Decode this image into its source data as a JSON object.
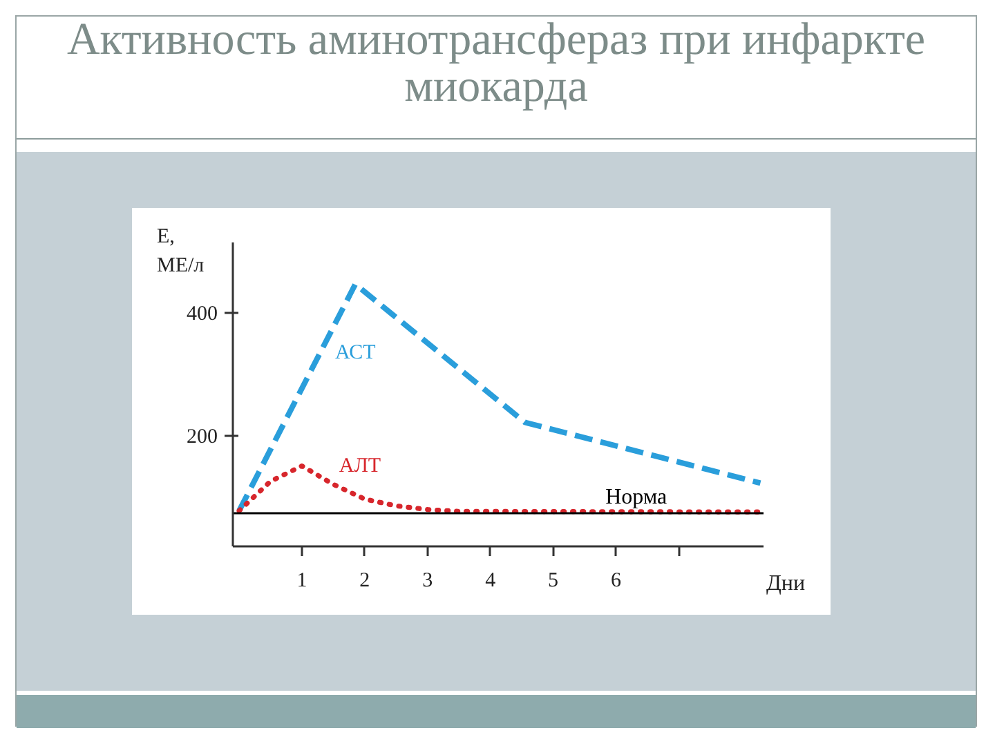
{
  "chart_data": {
    "type": "line",
    "title": "Активность аминотрансфераз при инфаркте миокарда",
    "xlabel": "Дни",
    "ylabel": "Е, МЕ/л",
    "xlim": [
      -0.1,
      8.35
    ],
    "ylim": [
      20,
      515
    ],
    "xticks": [
      1,
      2,
      3,
      4,
      5,
      6,
      {
        "value": 7,
        "label": null
      }
    ],
    "yticks": [
      200,
      400
    ],
    "series": [
      {
        "name": "АСТ",
        "color": "#2a9edb",
        "line_style": "dashed",
        "x": [
          0,
          1.85,
          4.55,
          8.3
        ],
        "values": [
          78,
          447,
          222,
          123
        ]
      },
      {
        "name": "АЛТ",
        "color": "#d7262c",
        "line_style": "dotted",
        "x": [
          0,
          0.5,
          1.0,
          1.5,
          2.0,
          2.5,
          3.0,
          3.5,
          8.3
        ],
        "values": [
          78,
          126,
          151,
          121,
          97,
          86,
          80,
          77,
          76
        ]
      }
    ],
    "ref_lines": [
      {
        "axis": "y",
        "value": 74,
        "label": "Норма",
        "color": "#000000"
      }
    ]
  }
}
